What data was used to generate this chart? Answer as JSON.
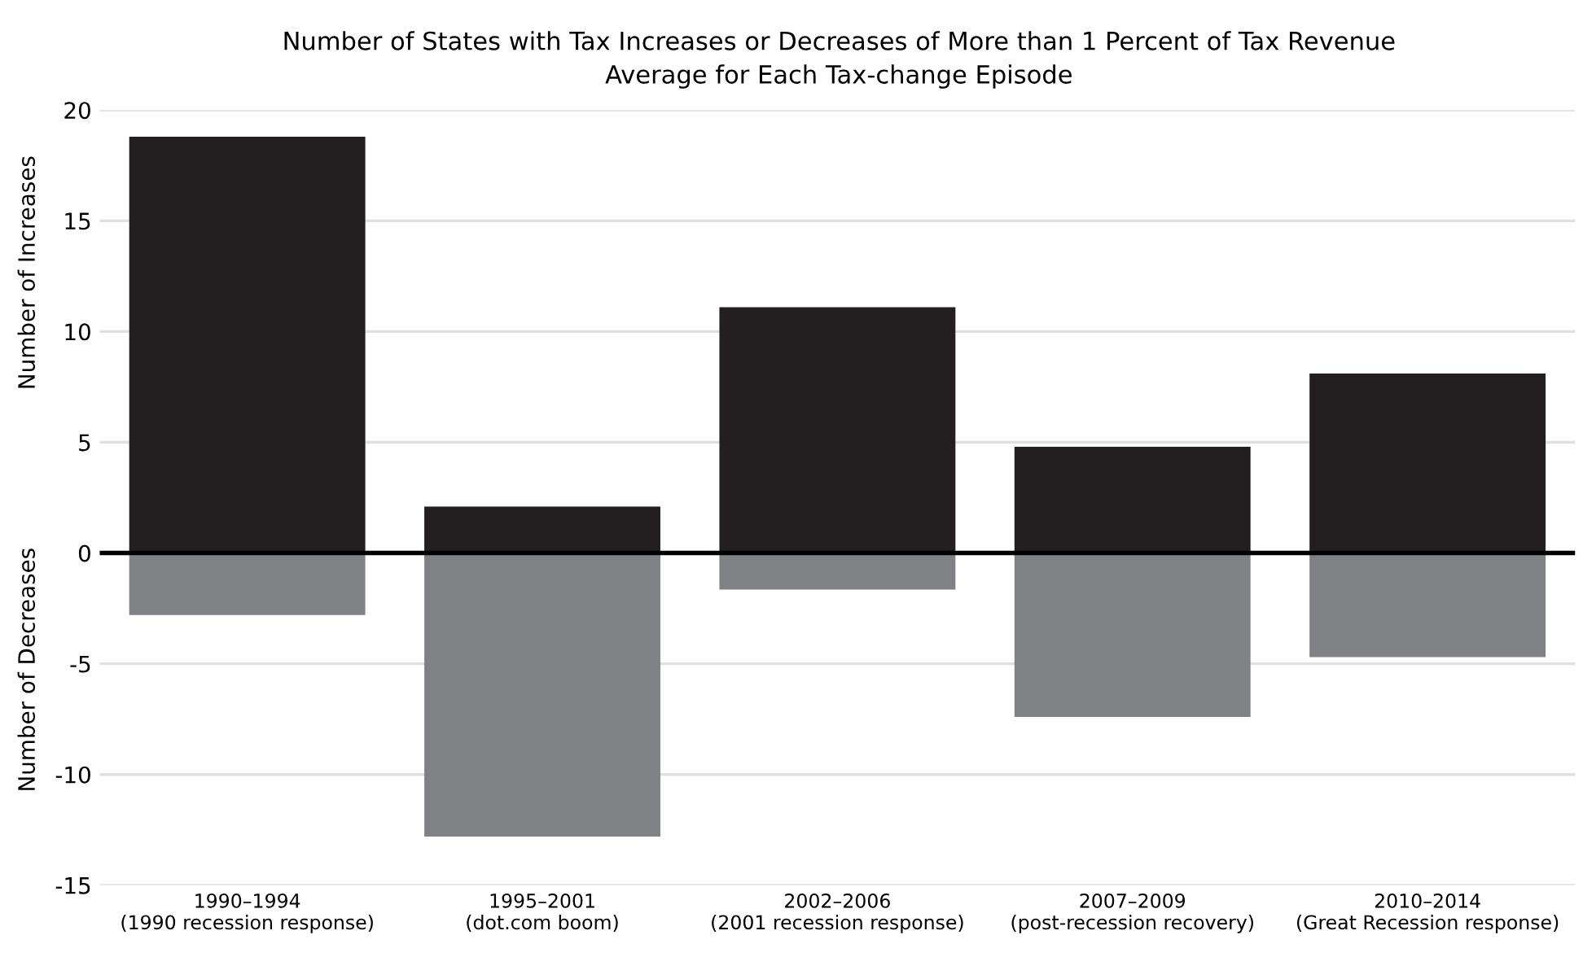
{
  "chart_data": {
    "type": "bar",
    "title": "Number of States with Tax Increases or Decreases of More than 1 Percent of Tax Revenue",
    "subtitle": "Average for Each Tax-change Episode",
    "ylabel": "Number of Increases",
    "annotations": [
      "Number of Decreases"
    ],
    "categories": [
      "1990–1994\n(1990 recession response)",
      "1995–2001\n(dot.com boom)",
      "2002–2006\n(2001 recession response)",
      "2007–2009\n(post-recession recovery)",
      "2010–2014\n(Great Recession response)"
    ],
    "series": [
      {
        "color": "#231f20",
        "values": [
          18.8,
          2.1,
          11.1,
          4.8,
          8.1
        ]
      },
      {
        "color": "#808184",
        "values": [
          -2.8,
          -12.8,
          -1.65,
          -7.4,
          -4.7
        ]
      }
    ],
    "stacked": true,
    "ylim": [
      -15,
      20
    ],
    "yticks": [
      -15,
      -10,
      -5,
      0,
      5,
      10,
      15,
      20
    ],
    "grid": "y",
    "ref_lines": [
      {
        "axis": "y",
        "value": 0,
        "color": "#000000"
      }
    ]
  }
}
